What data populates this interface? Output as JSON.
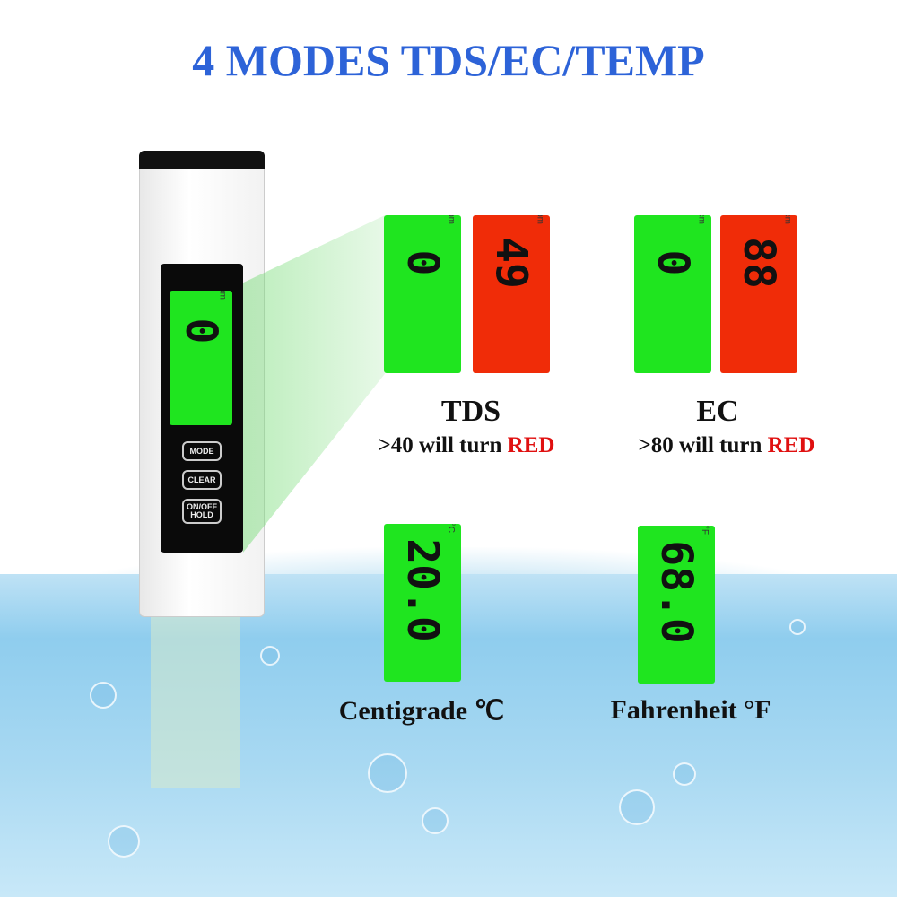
{
  "title": "4 MODES TDS/EC/TEMP",
  "meter": {
    "display": "0",
    "unit": "ppm",
    "buttons": [
      "MODE",
      "CLEAR",
      "ON/OFF HOLD"
    ]
  },
  "tds": {
    "label": "TDS",
    "note_prefix": ">40 will turn ",
    "note_red": "RED",
    "green_value": "0",
    "red_value": "49",
    "unit": "ppm"
  },
  "ec": {
    "label": "EC",
    "note_prefix": ">80 will turn ",
    "note_red": "RED",
    "green_value": "0",
    "red_value": "88",
    "unit": "uS/cm"
  },
  "celsius": {
    "label": "Centigrade ℃",
    "value": "20.0",
    "unit": "°C"
  },
  "fahrenheit": {
    "label": "Fahrenheit °F",
    "value": "68.0",
    "unit": "°F"
  },
  "colors": {
    "title": "#2d63d8",
    "lcd_green": "#1fe51f",
    "lcd_red": "#f02c08",
    "warning": "#e01010"
  }
}
